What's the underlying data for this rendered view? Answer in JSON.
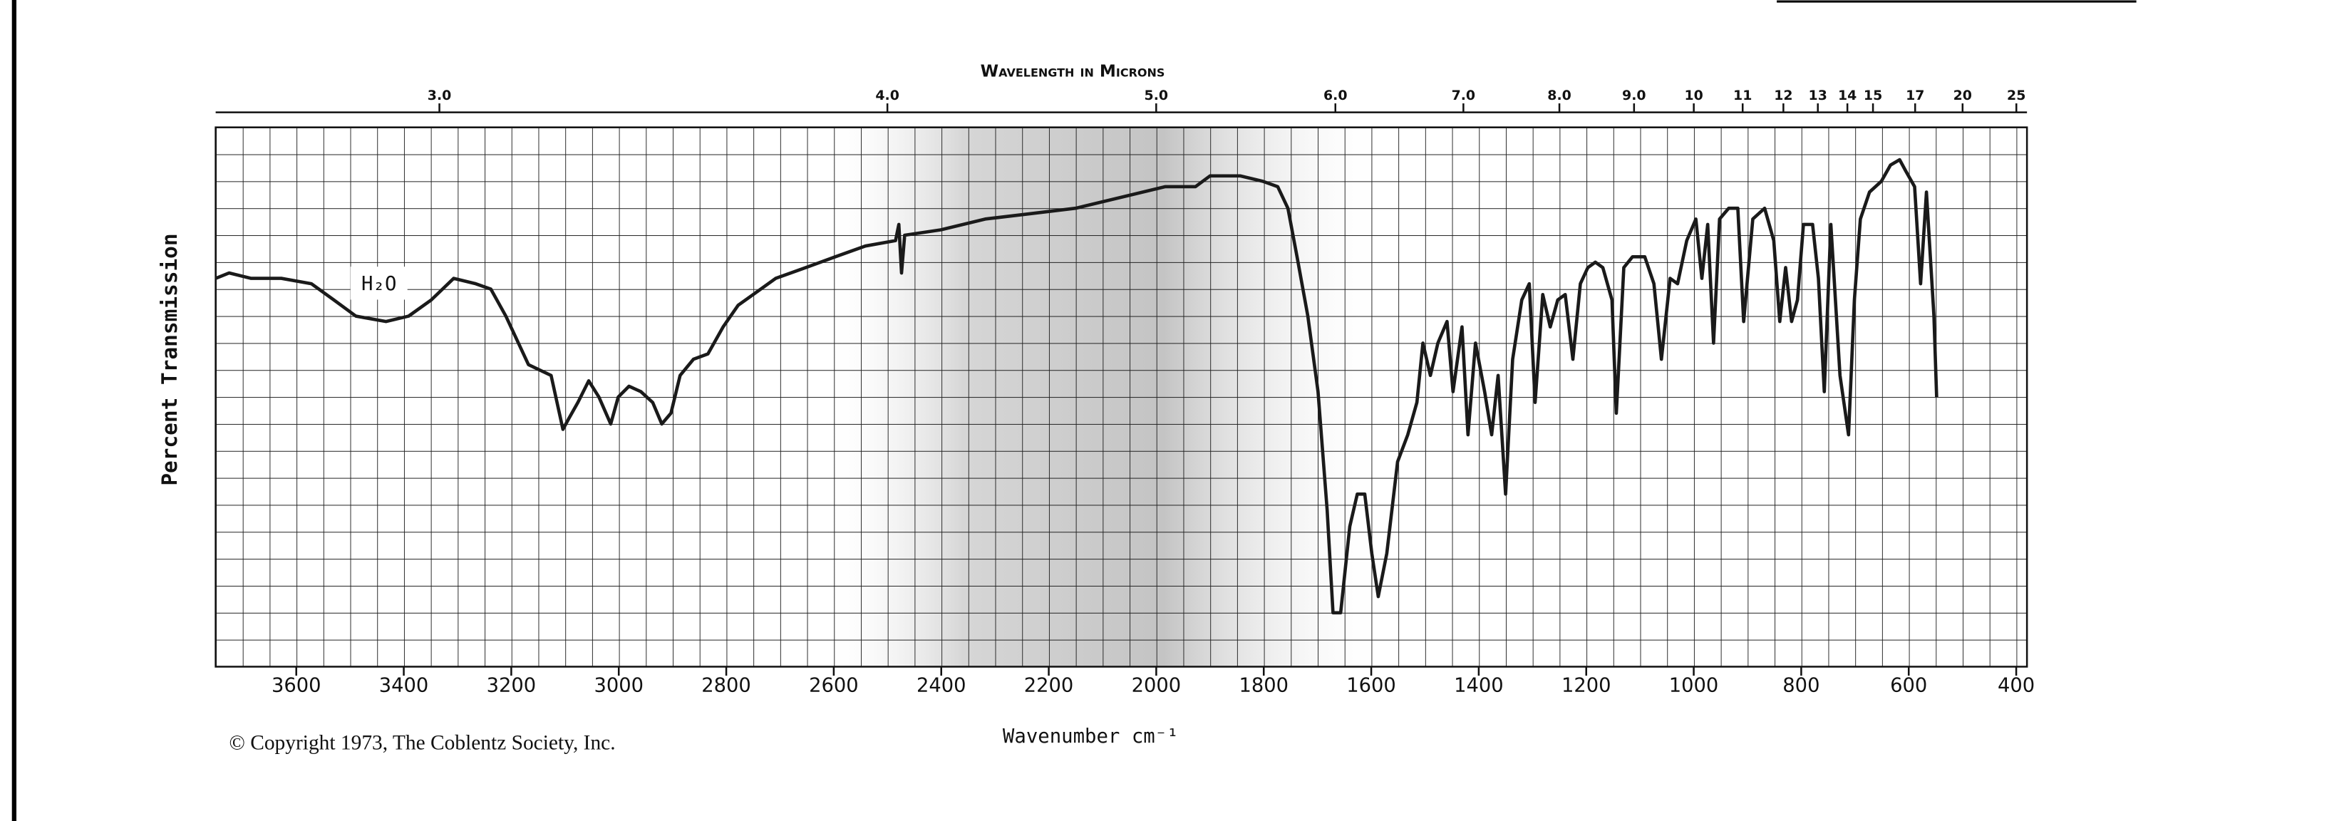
{
  "chart_data": {
    "type": "line",
    "title": "Wavelength in Microns",
    "xlabel": "Wavenumber cm⁻¹",
    "ylabel": "Percent Transmission",
    "annotation": "H₂O",
    "footer": "© Copyright 1973, The Coblentz Society, Inc.",
    "color": "#1a1a1a",
    "grid": true,
    "xlim": [
      3750,
      380
    ],
    "xticks": [
      3600,
      3400,
      3200,
      3000,
      2800,
      2600,
      2400,
      2200,
      2000,
      1800,
      1600,
      1400,
      1200,
      1000,
      800,
      600,
      400
    ],
    "ylim": [
      0,
      100
    ],
    "x2lim": [
      2.667,
      26.3
    ],
    "x2scale": "reciprocal",
    "x2ticks": [
      {
        "value": 3,
        "label": "3.0"
      },
      {
        "value": 4,
        "label": "4.0"
      },
      {
        "value": 5,
        "label": "5.0"
      },
      {
        "value": 6,
        "label": "6.0"
      },
      {
        "value": 7,
        "label": "7.0"
      },
      {
        "value": 8,
        "label": "8.0"
      },
      {
        "value": 9,
        "label": "9.0"
      },
      10,
      11,
      12,
      13,
      14,
      15,
      17,
      20,
      25
    ],
    "x": [
      3750,
      3725,
      3684,
      3628,
      3572,
      3530,
      3489,
      3433,
      3391,
      3349,
      3307,
      3266,
      3238,
      3210,
      3168,
      3126,
      3104,
      3093,
      3076,
      3056,
      3037,
      3015,
      3001,
      2981,
      2959,
      2937,
      2920,
      2903,
      2886,
      2861,
      2834,
      2806,
      2778,
      2750,
      2708,
      2652,
      2597,
      2541,
      2485,
      2479,
      2474,
      2468,
      2401,
      2318,
      2234,
      2150,
      2067,
      1983,
      1927,
      1900,
      1844,
      1802,
      1774,
      1755,
      1738,
      1718,
      1699,
      1682,
      1671,
      1657,
      1640,
      1626,
      1612,
      1599,
      1587,
      1571,
      1551,
      1532,
      1515,
      1504,
      1490,
      1476,
      1459,
      1448,
      1431,
      1420,
      1406,
      1389,
      1376,
      1364,
      1350,
      1337,
      1320,
      1306,
      1295,
      1281,
      1267,
      1253,
      1239,
      1225,
      1211,
      1197,
      1183,
      1169,
      1152,
      1144,
      1130,
      1114,
      1091,
      1074,
      1060,
      1044,
      1030,
      1013,
      996,
      985,
      974,
      963,
      952,
      935,
      918,
      907,
      890,
      868,
      851,
      840,
      829,
      818,
      807,
      796,
      779,
      768,
      757,
      745,
      728,
      712,
      701,
      690,
      673,
      651,
      634,
      617,
      606,
      589,
      578,
      567,
      553,
      548
    ],
    "values": [
      72,
      73,
      72,
      72,
      71,
      68,
      65,
      64,
      65,
      68,
      72,
      71,
      70,
      65,
      56,
      54,
      44,
      46,
      49,
      53,
      50,
      45,
      50,
      52,
      51,
      49,
      45,
      47,
      54,
      57,
      58,
      63,
      67,
      69,
      72,
      74,
      76,
      78,
      79,
      82,
      73,
      80,
      81,
      83,
      84,
      85,
      87,
      89,
      89,
      91,
      91,
      90,
      89,
      85,
      76,
      65,
      51,
      29,
      10,
      10,
      26,
      32,
      32,
      21,
      13,
      21,
      38,
      43,
      49,
      60,
      54,
      60,
      64,
      51,
      63,
      43,
      60,
      51,
      43,
      54,
      32,
      57,
      68,
      71,
      49,
      69,
      63,
      68,
      69,
      57,
      71,
      74,
      75,
      74,
      68,
      47,
      74,
      76,
      76,
      71,
      57,
      72,
      71,
      79,
      83,
      72,
      82,
      60,
      83,
      85,
      85,
      64,
      83,
      85,
      79,
      64,
      74,
      64,
      68,
      82,
      82,
      72,
      51,
      82,
      54,
      43,
      68,
      83,
      88,
      90,
      93,
      94,
      92,
      89,
      71,
      88,
      65,
      50
    ]
  }
}
